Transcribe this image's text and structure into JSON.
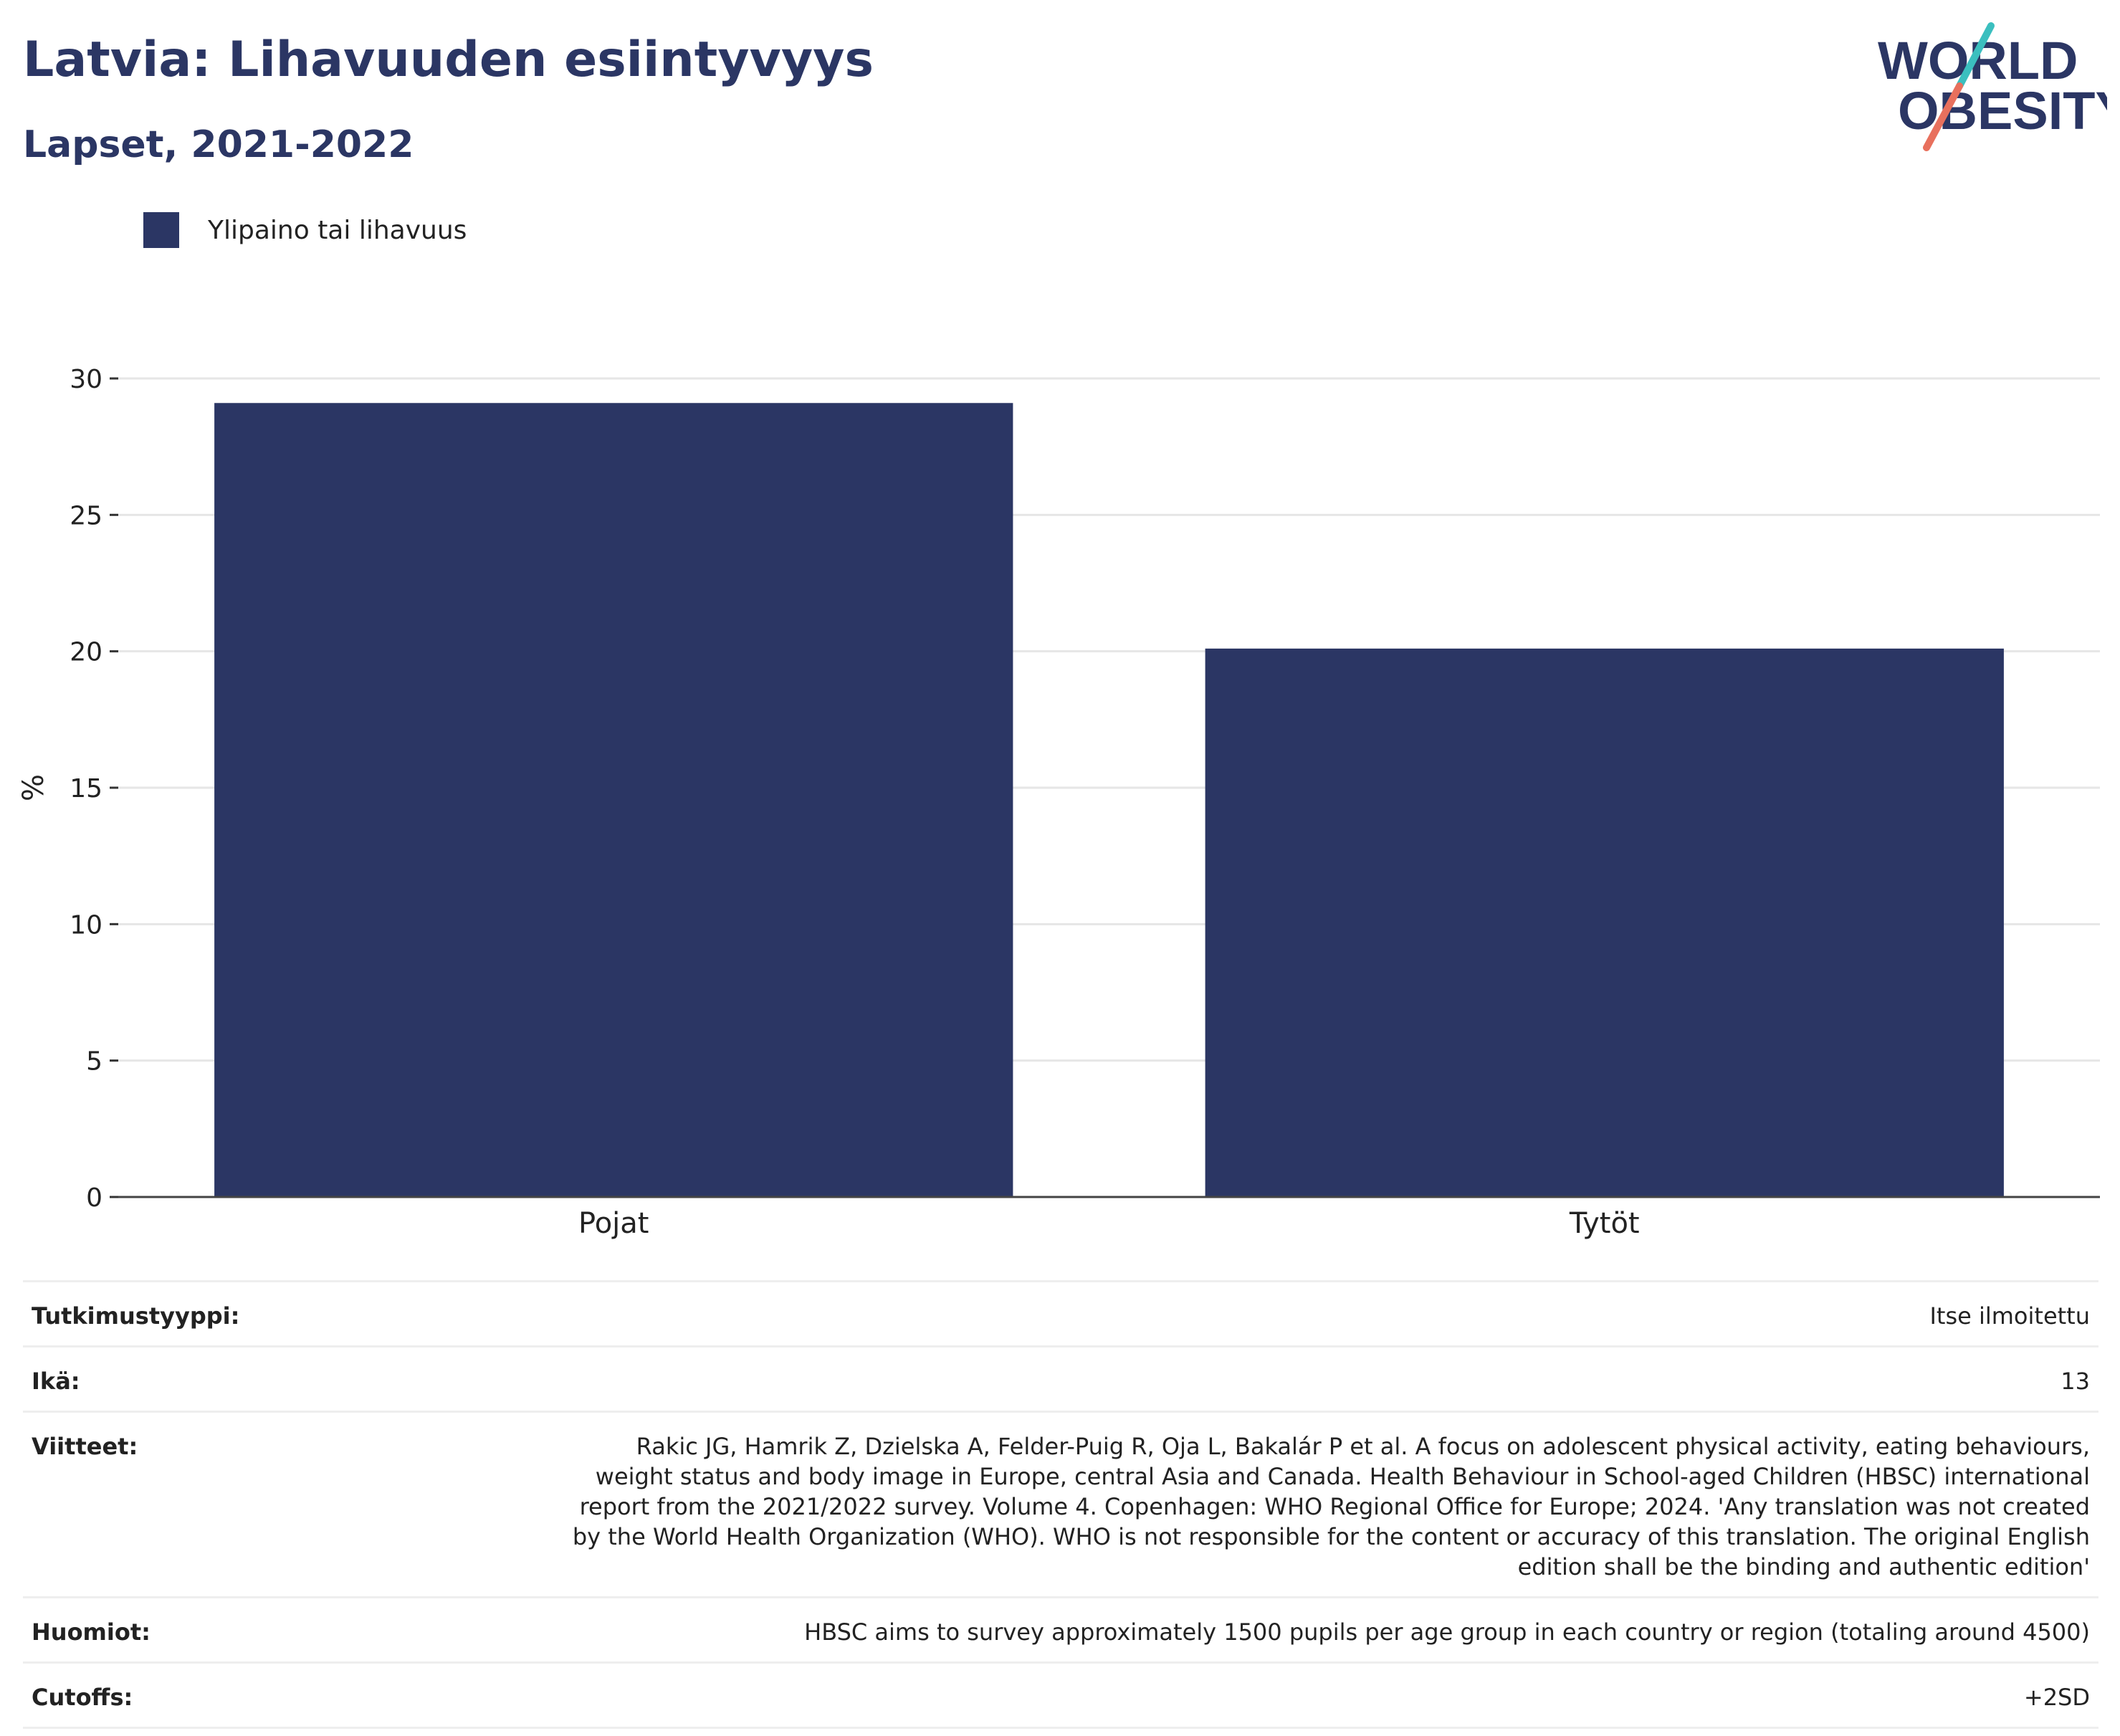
{
  "header": {
    "title": "Latvia: Lihavuuden esiintyvyys",
    "subtitle": "Lapset, 2021-2022"
  },
  "logo": {
    "line1": "WORLD",
    "line2": "OBESITY",
    "colors": {
      "text": "#2b3664",
      "slash_top": "#3bbfbf",
      "slash_bottom": "#e8705d"
    }
  },
  "legend": {
    "label": "Ylipaino tai lihavuus",
    "color": "#2b3664"
  },
  "chart_data": {
    "type": "bar",
    "categories": [
      "Pojat",
      "Tytöt"
    ],
    "series": [
      {
        "name": "Ylipaino tai lihavuus",
        "values": [
          29.1,
          20.1
        ],
        "color": "#2b3664"
      }
    ],
    "ylabel": "%",
    "ylim": [
      0,
      30
    ],
    "yticks": [
      0,
      5,
      10,
      15,
      20,
      25,
      30
    ],
    "grid": true,
    "legend_position": "top-left"
  },
  "meta": [
    {
      "label": "Tutkimustyyppi:",
      "value": "Itse ilmoitettu"
    },
    {
      "label": "Ikä:",
      "value": "13"
    },
    {
      "label": "Viitteet:",
      "value": "Rakic JG, Hamrik Z, Dzielska A, Felder-Puig R, Oja L, Bakalár P et al. A focus on adolescent physical activity, eating behaviours, weight status and body image in Europe, central Asia and Canada. Health Behaviour in School-aged Children (HBSC) international report from the 2021/2022 survey. Volume 4. Copenhagen: WHO Regional Office for Europe; 2024. 'Any translation was not created by the World Health Organization (WHO). WHO is not responsible for the content or accuracy of this translation. The original English edition shall be the binding and authentic edition'"
    },
    {
      "label": "Huomiot:",
      "value": "HBSC aims to survey approximately 1500 pupils per age group in each country or region (totaling around 4500)"
    },
    {
      "label": "Cutoffs:",
      "value": "+2SD"
    }
  ]
}
